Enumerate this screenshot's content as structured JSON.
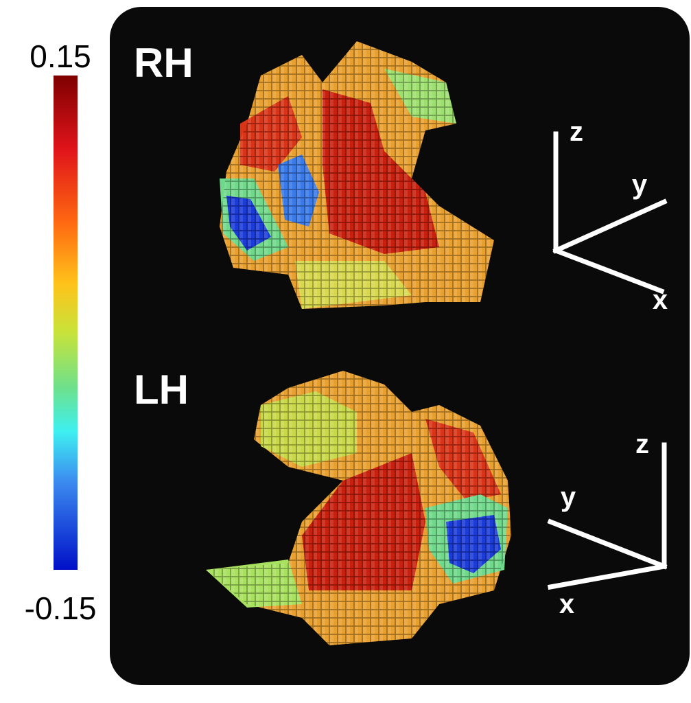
{
  "colorbar": {
    "max": "0.15",
    "min": "-0.15"
  },
  "panels": [
    {
      "label": "RH",
      "axes": {
        "z": "z",
        "y": "y",
        "x": "x"
      }
    },
    {
      "label": "LH",
      "axes": {
        "z": "z",
        "y": "y",
        "x": "x"
      }
    }
  ]
}
